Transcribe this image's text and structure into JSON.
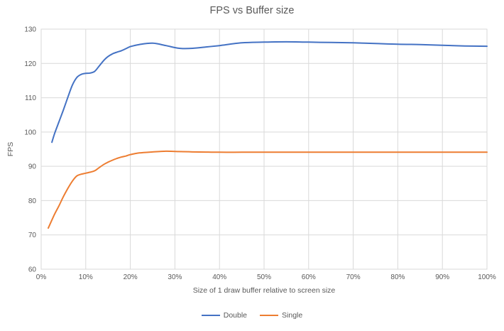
{
  "chart_data": {
    "type": "line",
    "title": "FPS vs Buffer size",
    "xlabel": "Size of 1 draw buffer relative to screen size",
    "ylabel": "FPS",
    "xlim": [
      0,
      100
    ],
    "ylim": [
      60,
      130
    ],
    "grid": true,
    "legend_position": "bottom",
    "x_ticks": [
      "0%",
      "10%",
      "20%",
      "30%",
      "40%",
      "50%",
      "60%",
      "70%",
      "80%",
      "90%",
      "100%"
    ],
    "x_tick_values": [
      0,
      10,
      20,
      30,
      40,
      50,
      60,
      70,
      80,
      90,
      100
    ],
    "y_ticks": [
      60,
      70,
      80,
      90,
      100,
      110,
      120,
      130
    ],
    "colors": {
      "grid": "#d9d9d9",
      "border": "#d9d9d9",
      "text": "#595959",
      "title": "#595959"
    },
    "series": [
      {
        "name": "Double",
        "color": "#4472c4",
        "points": [
          [
            2.4,
            97
          ],
          [
            3,
            99.5
          ],
          [
            4,
            103
          ],
          [
            5,
            106.5
          ],
          [
            6,
            110.2
          ],
          [
            7,
            113.7
          ],
          [
            8,
            115.9
          ],
          [
            9,
            116.8
          ],
          [
            10,
            117.1
          ],
          [
            11,
            117.2
          ],
          [
            12,
            117.7
          ],
          [
            13,
            119.2
          ],
          [
            14,
            120.8
          ],
          [
            15,
            122.0
          ],
          [
            16,
            122.8
          ],
          [
            17,
            123.3
          ],
          [
            18,
            123.7
          ],
          [
            19,
            124.3
          ],
          [
            20,
            124.9
          ],
          [
            22,
            125.5
          ],
          [
            25,
            125.9
          ],
          [
            28,
            125.2
          ],
          [
            31,
            124.4
          ],
          [
            34,
            124.4
          ],
          [
            37,
            124.8
          ],
          [
            40,
            125.2
          ],
          [
            45,
            126.0
          ],
          [
            50,
            126.2
          ],
          [
            55,
            126.3
          ],
          [
            60,
            126.2
          ],
          [
            65,
            126.1
          ],
          [
            70,
            126.0
          ],
          [
            75,
            125.8
          ],
          [
            80,
            125.6
          ],
          [
            85,
            125.5
          ],
          [
            90,
            125.3
          ],
          [
            95,
            125.1
          ],
          [
            100,
            125.0
          ]
        ]
      },
      {
        "name": "Single",
        "color": "#ed7d31",
        "points": [
          [
            1.6,
            72
          ],
          [
            3,
            76.0
          ],
          [
            4,
            78.5
          ],
          [
            5,
            81.2
          ],
          [
            6,
            83.6
          ],
          [
            7,
            85.7
          ],
          [
            8,
            87.2
          ],
          [
            9,
            87.7
          ],
          [
            10,
            88.0
          ],
          [
            11,
            88.3
          ],
          [
            12,
            88.7
          ],
          [
            13,
            89.6
          ],
          [
            14,
            90.5
          ],
          [
            15,
            91.2
          ],
          [
            16,
            91.8
          ],
          [
            17,
            92.3
          ],
          [
            18,
            92.7
          ],
          [
            19,
            93.0
          ],
          [
            20,
            93.4
          ],
          [
            22,
            93.9
          ],
          [
            25,
            94.2
          ],
          [
            28,
            94.4
          ],
          [
            31,
            94.3
          ],
          [
            34,
            94.2
          ],
          [
            37,
            94.15
          ],
          [
            40,
            94.1
          ],
          [
            45,
            94.1
          ],
          [
            50,
            94.1
          ],
          [
            55,
            94.1
          ],
          [
            60,
            94.1
          ],
          [
            65,
            94.1
          ],
          [
            70,
            94.1
          ],
          [
            75,
            94.1
          ],
          [
            80,
            94.1
          ],
          [
            85,
            94.1
          ],
          [
            90,
            94.1
          ],
          [
            95,
            94.1
          ],
          [
            100,
            94.1
          ]
        ]
      }
    ]
  }
}
